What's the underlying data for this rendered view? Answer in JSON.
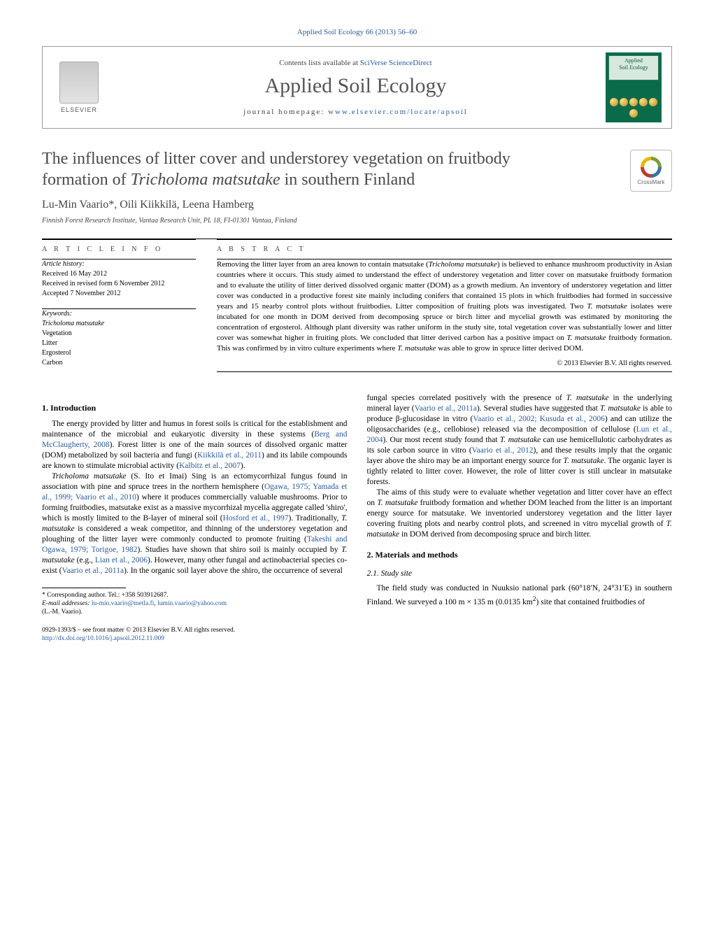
{
  "header": {
    "journal_citation": "Applied Soil Ecology 66 (2013) 56–60",
    "contents_prefix": "Contents lists available at ",
    "contents_link": "SciVerse ScienceDirect",
    "journal_name": "Applied Soil Ecology",
    "homepage_prefix": "journal homepage: ",
    "homepage_link": "www.elsevier.com/locate/apsoil",
    "elsevier_label": "ELSEVIER",
    "cover_top_line1": "Applied",
    "cover_top_line2": "Soil Ecology"
  },
  "title": {
    "line1": "The influences of litter cover and understorey vegetation on fruitbody",
    "line2_pre": "formation of ",
    "line2_italic": "Tricholoma matsutake",
    "line2_post": " in southern Finland"
  },
  "crossmark": {
    "label": "CrossMark"
  },
  "authors": "Lu-Min Vaario*, Oili Kiikkilä, Leena Hamberg",
  "affiliation": "Finnish Forest Research Institute, Vantaa Research Unit, PL 18, FI-01301 Vantaa, Finland",
  "article_info": {
    "heading": "a r t i c l e   i n f o",
    "history_label": "Article history:",
    "received": "Received 16 May 2012",
    "revised": "Received in revised form 6 November 2012",
    "accepted": "Accepted 7 November 2012",
    "keywords_label": "Keywords:",
    "keywords": [
      "Tricholoma matsutake",
      "Vegetation",
      "Litter",
      "Ergosterol",
      "Carbon"
    ]
  },
  "abstract": {
    "heading": "a b s t r a c t",
    "text_parts": [
      {
        "t": "Removing the litter layer from an area known to contain matsutake ("
      },
      {
        "i": "Tricholoma matsutake"
      },
      {
        "t": ") is believed to enhance mushroom productivity in Asian countries where it occurs. This study aimed to understand the effect of understorey vegetation and litter cover on matsutake fruitbody formation and to evaluate the utility of litter derived dissolved organic matter (DOM) as a growth medium. An inventory of understorey vegetation and litter cover was conducted in a productive forest site mainly including conifers that contained 15 plots in which fruitbodies had formed in successive years and 15 nearby control plots without fruitbodies. Litter composition of fruiting plots was investigated. Two "
      },
      {
        "i": "T. matsutake"
      },
      {
        "t": " isolates were incubated for one month in DOM derived from decomposing spruce or birch litter and mycelial growth was estimated by monitoring the concentration of ergosterol. Although plant diversity was rather uniform in the study site, total vegetation cover was substantially lower and litter cover was somewhat higher in fruiting plots. We concluded that litter derived carbon has a positive impact on "
      },
      {
        "i": "T. matsutake"
      },
      {
        "t": " fruitbody formation. This was confirmed by in vitro culture experiments where "
      },
      {
        "i": "T. matsutake"
      },
      {
        "t": " was able to grow in spruce litter derived DOM."
      }
    ],
    "copyright": "© 2013 Elsevier B.V. All rights reserved."
  },
  "sections": {
    "intro_head": "1.  Introduction",
    "intro_p1_parts": [
      {
        "t": "The energy provided by litter and humus in forest soils is critical for the establishment and maintenance of the microbial and eukaryotic diversity in these systems ("
      },
      {
        "a": "Berg and McClaugherty, 2008"
      },
      {
        "t": "). Forest litter is one of the main sources of dissolved organic matter (DOM) metabolized by soil bacteria and fungi ("
      },
      {
        "a": "Kiikkilä et al., 2011"
      },
      {
        "t": ") and its labile compounds are known to stimulate microbial activity ("
      },
      {
        "a": "Kalbitz et al., 2007"
      },
      {
        "t": ")."
      }
    ],
    "intro_p2_parts": [
      {
        "i": "Tricholoma matsutake"
      },
      {
        "t": " (S. Ito et Imai) Sing is an ectomycorrhizal fungus found in association with pine and spruce trees in the northern hemisphere ("
      },
      {
        "a": "Ogawa, 1975; Yamada et al., 1999; Vaario et al., 2010"
      },
      {
        "t": ") where it produces commercially valuable mushrooms. Prior to forming fruitbodies, matsutake exist as a massive mycorrhizal mycelia aggregate called 'shiro', which is mostly limited to the B-layer of mineral soil ("
      },
      {
        "a": "Hosford et al., 1997"
      },
      {
        "t": "). Traditionally, "
      },
      {
        "i": "T. matsutake"
      },
      {
        "t": " is considered a weak competitor, and thinning of the understorey vegetation and ploughing of the litter layer were commonly conducted to promote fruiting ("
      },
      {
        "a": "Takeshi and Ogawa, 1979; Torigoe, 1982"
      },
      {
        "t": "). Studies have shown that shiro soil is mainly occupied by "
      },
      {
        "i": "T. matsutake"
      },
      {
        "t": " (e.g., "
      },
      {
        "a": "Lian et al., 2006"
      },
      {
        "t": "). However, many other fungal and actinobacterial species co-exist ("
      },
      {
        "a": "Vaario et al., 2011a"
      },
      {
        "t": "). In the organic soil layer above the shiro, the occurrence of several"
      }
    ],
    "intro_p3_parts": [
      {
        "t": "fungal species correlated positively with the presence of "
      },
      {
        "i": "T. matsutake"
      },
      {
        "t": " in the underlying mineral layer ("
      },
      {
        "a": "Vaario et al., 2011a"
      },
      {
        "t": "). Several studies have suggested that "
      },
      {
        "i": "T. matsutake"
      },
      {
        "t": " is able to produce β-glucosidase in vitro ("
      },
      {
        "a": "Vaario et al., 2002; Kusuda et al., 2006"
      },
      {
        "t": ") and can utilize the oligosaccharides (e.g., cellobiose) released via the decomposition of cellulose ("
      },
      {
        "a": "Lun et al., 2004"
      },
      {
        "t": "). Our most recent study found that "
      },
      {
        "i": "T. matsutake"
      },
      {
        "t": " can use hemicellulotic carbohydrates as its sole carbon source in vitro ("
      },
      {
        "a": "Vaario et al., 2012"
      },
      {
        "t": "), and these results imply that the organic layer above the shiro may be an important energy source for "
      },
      {
        "i": "T. matsutake"
      },
      {
        "t": ". The organic layer is tightly related to litter cover. However, the role of litter cover is still unclear in matsutake forests."
      }
    ],
    "intro_p4_parts": [
      {
        "t": "The aims of this study were to evaluate whether vegetation and litter cover have an effect on "
      },
      {
        "i": "T. matsutake"
      },
      {
        "t": " fruitbody formation and whether DOM leached from the litter is an important energy source for matsutake. We inventoried understorey vegetation and the litter layer covering fruiting plots and nearby control plots, and screened in vitro mycelial growth of "
      },
      {
        "i": "T. matsutake"
      },
      {
        "t": " in DOM derived from decomposing spruce and birch litter."
      }
    ],
    "mm_head": "2.  Materials and methods",
    "site_head": "2.1.  Study site",
    "site_p1_parts": [
      {
        "t": "The field study was conducted in Nuuksio national park (60°18′N, 24°31′E) in southern Finland. We surveyed a 100 m × 135 m (0.0135 km"
      },
      {
        "sup": "2"
      },
      {
        "t": ") site that contained fruitbodies of"
      }
    ]
  },
  "footnotes": {
    "corr_label": "* Corresponding author. Tel.: +358 503912687.",
    "email_label": "E-mail addresses:",
    "email1": "lu-min.vaario@metla.fi",
    "email_sep": ", ",
    "email2": "lumin.vaario@yahoo.com",
    "email_who": "(L.-M. Vaario)."
  },
  "bottom": {
    "issn": "0929-1393/$ – see front matter © 2013 Elsevier B.V. All rights reserved.",
    "doi_label": "",
    "doi": "http://dx.doi.org/10.1016/j.apsoil.2012.11.009"
  },
  "colors": {
    "link": "#2a5a9e",
    "text": "#000000",
    "title_gray": "#4a4a4a",
    "cover_green": "#0a6b4a"
  }
}
